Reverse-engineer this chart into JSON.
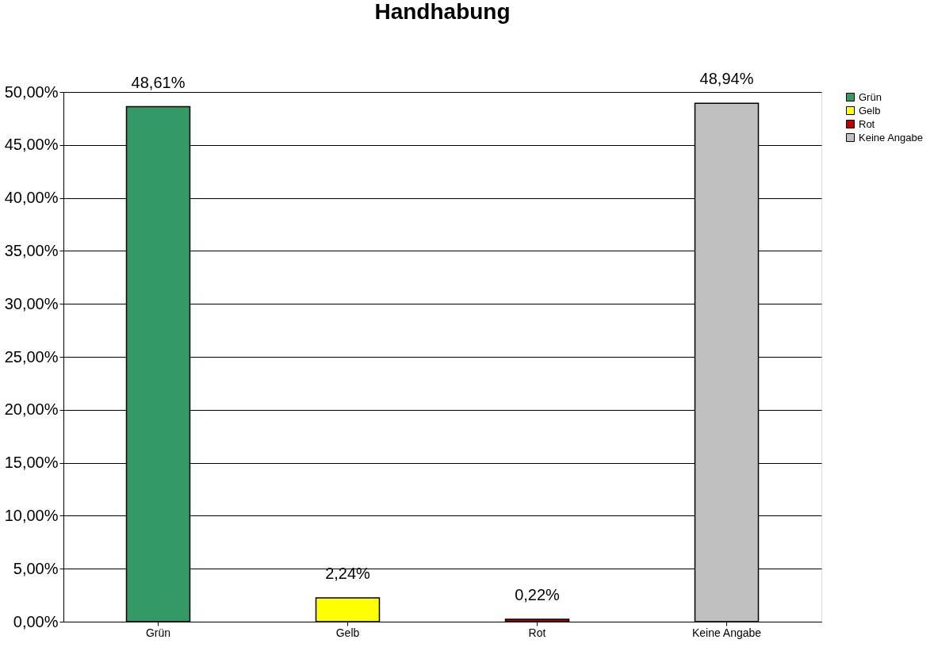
{
  "chart_data": {
    "type": "bar",
    "title": "Handhabung",
    "categories": [
      "Grün",
      "Gelb",
      "Rot",
      "Keine Angabe"
    ],
    "series": [
      {
        "name": "Grün",
        "color": "#339966",
        "values": [
          48.61,
          null,
          null,
          null
        ],
        "value_labels": [
          "48,61%",
          null,
          null,
          null
        ]
      },
      {
        "name": "Gelb",
        "color": "#ffff00",
        "values": [
          null,
          2.24,
          null,
          null
        ],
        "value_labels": [
          null,
          "2,24%",
          null,
          null
        ]
      },
      {
        "name": "Rot",
        "color": "#c00000",
        "values": [
          null,
          null,
          0.22,
          null
        ],
        "value_labels": [
          null,
          null,
          "0,22%",
          null
        ]
      },
      {
        "name": "Keine Angabe",
        "color": "#c0c0c0",
        "values": [
          null,
          null,
          null,
          48.94
        ],
        "value_labels": [
          null,
          null,
          null,
          "48,94%"
        ]
      }
    ],
    "ylim": [
      0,
      50
    ],
    "yticks": [
      {
        "value": 0,
        "label": "0,00%"
      },
      {
        "value": 5,
        "label": "5,00%"
      },
      {
        "value": 10,
        "label": "10,00%"
      },
      {
        "value": 15,
        "label": "15,00%"
      },
      {
        "value": 20,
        "label": "20,00%"
      },
      {
        "value": 25,
        "label": "25,00%"
      },
      {
        "value": 30,
        "label": "30,00%"
      },
      {
        "value": 35,
        "label": "35,00%"
      },
      {
        "value": 40,
        "label": "40,00%"
      },
      {
        "value": 45,
        "label": "45,00%"
      },
      {
        "value": 50,
        "label": "50,00%"
      }
    ],
    "grid": "y",
    "legend": "right"
  }
}
